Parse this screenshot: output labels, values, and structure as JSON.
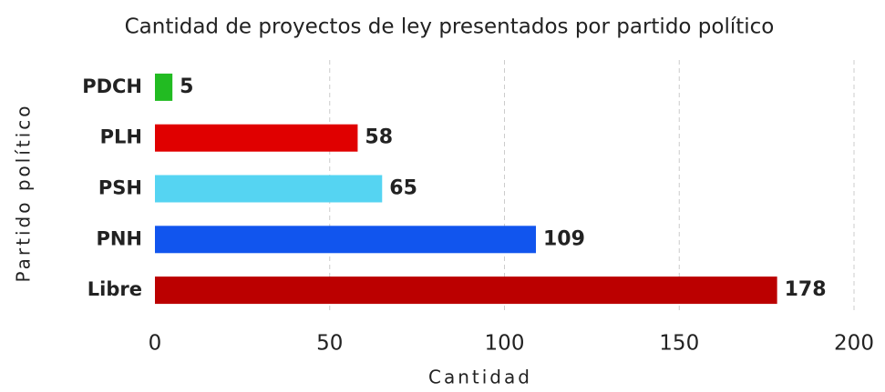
{
  "chart_data": {
    "type": "bar",
    "orientation": "horizontal",
    "title": "Cantidad de proyectos de ley presentados por partido político",
    "x_label": "Cantidad",
    "y_label": "Partido político",
    "categories": [
      "PDCH",
      "PLH",
      "PSH",
      "PNH",
      "Libre"
    ],
    "values": [
      5,
      58,
      65,
      109,
      178
    ],
    "colors": [
      "#22bb22",
      "#e00000",
      "#55d4f2",
      "#1155ee",
      "#bb0000"
    ],
    "xlim": [
      0,
      200
    ],
    "xticks": [
      0,
      50,
      100,
      150,
      200
    ],
    "grid": true
  }
}
